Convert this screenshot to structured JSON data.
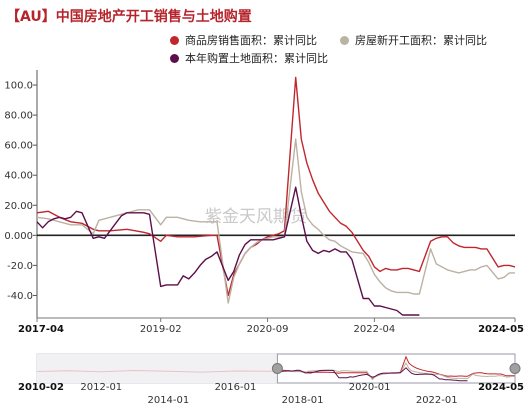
{
  "title": "【AU】中国房地产开工销售与土地购置",
  "watermark": "紫金天风期货",
  "chart_data": {
    "type": "line",
    "x_start": "2017-04",
    "x_end": "2024-05",
    "ylim": [
      -55,
      110
    ],
    "yticks": [
      -40.0,
      -20.0,
      0.0,
      20.0,
      40.0,
      60.0,
      80.0,
      100.0
    ],
    "ytick_labels": [
      "-40.0",
      "-20.0",
      "0.000",
      "20.00",
      "40.00",
      "60.00",
      "80.00",
      "100.0"
    ],
    "xtick_labels": [
      {
        "date": "2017-04",
        "label": "2017-04",
        "bold": true
      },
      {
        "date": "2019-02",
        "label": "2019-02",
        "bold": false
      },
      {
        "date": "2020-09",
        "label": "2020-09",
        "bold": false
      },
      {
        "date": "2022-04",
        "label": "2022-04",
        "bold": false
      },
      {
        "date": "2024-05",
        "label": "2024-05",
        "bold": true
      }
    ],
    "series": [
      {
        "name": "商品房销售面积：累计同比",
        "color": "#c0272d",
        "points": [
          [
            "2017-04",
            15
          ],
          [
            "2017-06",
            16
          ],
          [
            "2017-08",
            12
          ],
          [
            "2017-10",
            9
          ],
          [
            "2017-12",
            8
          ],
          [
            "2018-02",
            4
          ],
          [
            "2018-03",
            3
          ],
          [
            "2018-05",
            3
          ],
          [
            "2018-08",
            4
          ],
          [
            "2018-11",
            2
          ],
          [
            "2018-12",
            1
          ],
          [
            "2019-02",
            -4
          ],
          [
            "2019-03",
            0
          ],
          [
            "2019-05",
            -1
          ],
          [
            "2019-08",
            -1
          ],
          [
            "2019-11",
            0
          ],
          [
            "2019-12",
            0
          ],
          [
            "2020-02",
            -40
          ],
          [
            "2020-03",
            -26
          ],
          [
            "2020-04",
            -19
          ],
          [
            "2020-05",
            -12
          ],
          [
            "2020-06",
            -8
          ],
          [
            "2020-07",
            -6
          ],
          [
            "2020-08",
            -3
          ],
          [
            "2020-09",
            -1
          ],
          [
            "2020-10",
            0
          ],
          [
            "2020-11",
            1
          ],
          [
            "2020-12",
            3
          ],
          [
            "2021-02",
            105
          ],
          [
            "2021-03",
            64
          ],
          [
            "2021-04",
            48
          ],
          [
            "2021-05",
            37
          ],
          [
            "2021-06",
            28
          ],
          [
            "2021-07",
            22
          ],
          [
            "2021-08",
            16
          ],
          [
            "2021-09",
            12
          ],
          [
            "2021-10",
            8
          ],
          [
            "2021-11",
            6
          ],
          [
            "2021-12",
            2
          ],
          [
            "2022-02",
            -10
          ],
          [
            "2022-03",
            -14
          ],
          [
            "2022-04",
            -21
          ],
          [
            "2022-05",
            -24
          ],
          [
            "2022-06",
            -22
          ],
          [
            "2022-07",
            -23
          ],
          [
            "2022-08",
            -23
          ],
          [
            "2022-09",
            -22
          ],
          [
            "2022-10",
            -22
          ],
          [
            "2022-11",
            -23
          ],
          [
            "2022-12",
            -24
          ],
          [
            "2023-02",
            -4
          ],
          [
            "2023-03",
            -2
          ],
          [
            "2023-04",
            -1
          ],
          [
            "2023-05",
            -1
          ],
          [
            "2023-06",
            -5
          ],
          [
            "2023-07",
            -7
          ],
          [
            "2023-08",
            -8
          ],
          [
            "2023-09",
            -8
          ],
          [
            "2023-10",
            -8
          ],
          [
            "2023-11",
            -9
          ],
          [
            "2023-12",
            -9
          ],
          [
            "2024-02",
            -21
          ],
          [
            "2024-03",
            -20
          ],
          [
            "2024-04",
            -20
          ],
          [
            "2024-05",
            -21
          ]
        ]
      },
      {
        "name": "房屋新开工面积：累计同比",
        "color": "#bcb2a3",
        "points": [
          [
            "2017-04",
            12
          ],
          [
            "2017-06",
            11
          ],
          [
            "2017-08",
            9
          ],
          [
            "2017-10",
            7
          ],
          [
            "2017-12",
            7
          ],
          [
            "2018-02",
            1
          ],
          [
            "2018-03",
            10
          ],
          [
            "2018-05",
            12
          ],
          [
            "2018-07",
            14
          ],
          [
            "2018-09",
            16
          ],
          [
            "2018-10",
            17
          ],
          [
            "2018-11",
            17
          ],
          [
            "2018-12",
            17
          ],
          [
            "2019-02",
            7
          ],
          [
            "2019-03",
            12
          ],
          [
            "2019-05",
            12
          ],
          [
            "2019-07",
            10
          ],
          [
            "2019-09",
            9
          ],
          [
            "2019-11",
            9
          ],
          [
            "2019-12",
            9
          ],
          [
            "2020-02",
            -45
          ],
          [
            "2020-03",
            -28
          ],
          [
            "2020-04",
            -19
          ],
          [
            "2020-05",
            -12
          ],
          [
            "2020-06",
            -8
          ],
          [
            "2020-07",
            -5
          ],
          [
            "2020-08",
            -3
          ],
          [
            "2020-09",
            -2
          ],
          [
            "2020-10",
            -1
          ],
          [
            "2020-11",
            -1
          ],
          [
            "2020-12",
            -1
          ],
          [
            "2021-02",
            64
          ],
          [
            "2021-03",
            29
          ],
          [
            "2021-04",
            12
          ],
          [
            "2021-05",
            7
          ],
          [
            "2021-06",
            4
          ],
          [
            "2021-07",
            0
          ],
          [
            "2021-08",
            -3
          ],
          [
            "2021-09",
            -4
          ],
          [
            "2021-10",
            -7
          ],
          [
            "2021-11",
            -9
          ],
          [
            "2021-12",
            -11
          ],
          [
            "2022-02",
            -12
          ],
          [
            "2022-03",
            -18
          ],
          [
            "2022-04",
            -26
          ],
          [
            "2022-05",
            -31
          ],
          [
            "2022-06",
            -35
          ],
          [
            "2022-07",
            -37
          ],
          [
            "2022-08",
            -38
          ],
          [
            "2022-09",
            -38
          ],
          [
            "2022-10",
            -38
          ],
          [
            "2022-11",
            -39
          ],
          [
            "2022-12",
            -39
          ],
          [
            "2023-02",
            -9
          ],
          [
            "2023-03",
            -19
          ],
          [
            "2023-04",
            -21
          ],
          [
            "2023-05",
            -23
          ],
          [
            "2023-06",
            -24
          ],
          [
            "2023-07",
            -25
          ],
          [
            "2023-08",
            -24
          ],
          [
            "2023-09",
            -23
          ],
          [
            "2023-10",
            -23
          ],
          [
            "2023-11",
            -21
          ],
          [
            "2023-12",
            -20
          ],
          [
            "2024-02",
            -29
          ],
          [
            "2024-03",
            -28
          ],
          [
            "2024-04",
            -25
          ],
          [
            "2024-05",
            -25
          ]
        ]
      },
      {
        "name": "本年购置土地面积：累计同比",
        "color": "#5c0f4a",
        "points": [
          [
            "2017-04",
            9
          ],
          [
            "2017-05",
            5
          ],
          [
            "2017-06",
            9
          ],
          [
            "2017-07",
            11
          ],
          [
            "2017-08",
            12
          ],
          [
            "2017-09",
            11
          ],
          [
            "2017-10",
            12
          ],
          [
            "2017-11",
            16
          ],
          [
            "2017-12",
            15
          ],
          [
            "2018-02",
            -2
          ],
          [
            "2018-03",
            -1
          ],
          [
            "2018-04",
            -2
          ],
          [
            "2018-05",
            3
          ],
          [
            "2018-06",
            8
          ],
          [
            "2018-07",
            13
          ],
          [
            "2018-08",
            15
          ],
          [
            "2018-09",
            15
          ],
          [
            "2018-10",
            15
          ],
          [
            "2018-11",
            15
          ],
          [
            "2018-12",
            14
          ],
          [
            "2019-02",
            -34
          ],
          [
            "2019-03",
            -33
          ],
          [
            "2019-04",
            -33
          ],
          [
            "2019-05",
            -33
          ],
          [
            "2019-06",
            -27
          ],
          [
            "2019-07",
            -29
          ],
          [
            "2019-08",
            -25
          ],
          [
            "2019-09",
            -20
          ],
          [
            "2019-10",
            -16
          ],
          [
            "2019-11",
            -14
          ],
          [
            "2019-12",
            -11
          ],
          [
            "2020-02",
            -30
          ],
          [
            "2020-03",
            -24
          ],
          [
            "2020-04",
            -13
          ],
          [
            "2020-05",
            -6
          ],
          [
            "2020-06",
            -3
          ],
          [
            "2020-07",
            -3
          ],
          [
            "2020-08",
            -3
          ],
          [
            "2020-09",
            -3
          ],
          [
            "2020-10",
            -3
          ],
          [
            "2020-11",
            -2
          ],
          [
            "2020-12",
            -1
          ],
          [
            "2021-02",
            32
          ],
          [
            "2021-03",
            13
          ],
          [
            "2021-04",
            -4
          ],
          [
            "2021-05",
            -10
          ],
          [
            "2021-06",
            -12
          ],
          [
            "2021-07",
            -10
          ],
          [
            "2021-08",
            -11
          ],
          [
            "2021-09",
            -9
          ],
          [
            "2021-10",
            -11
          ],
          [
            "2021-11",
            -11
          ],
          [
            "2021-12",
            -16
          ],
          [
            "2022-02",
            -42
          ],
          [
            "2022-03",
            -42
          ],
          [
            "2022-04",
            -47
          ],
          [
            "2022-05",
            -47
          ],
          [
            "2022-06",
            -48
          ],
          [
            "2022-07",
            -49
          ],
          [
            "2022-08",
            -50
          ],
          [
            "2022-09",
            -53
          ],
          [
            "2022-10",
            -53
          ],
          [
            "2022-11",
            -53
          ],
          [
            "2022-12",
            -53
          ]
        ]
      }
    ],
    "navigator": {
      "x_start": "2010-02",
      "x_end": "2024-05",
      "window_start": "2017-04",
      "window_end": "2024-05",
      "labels_row1": [
        {
          "date": "2010-02",
          "label": "2010-02",
          "bold": true
        },
        {
          "date": "2012-01",
          "label": "2012-01",
          "bold": false
        },
        {
          "date": "2016-01",
          "label": "2016-01",
          "bold": false
        },
        {
          "date": "2020-01",
          "label": "2020-01",
          "bold": false
        },
        {
          "date": "2024-05",
          "label": "2024-05",
          "bold": true
        }
      ],
      "labels_row2": [
        {
          "date": "2014-01",
          "label": "2014-01",
          "bold": false
        },
        {
          "date": "2018-01",
          "label": "2018-01",
          "bold": false
        },
        {
          "date": "2022-01",
          "label": "2022-01",
          "bold": false
        }
      ]
    }
  }
}
